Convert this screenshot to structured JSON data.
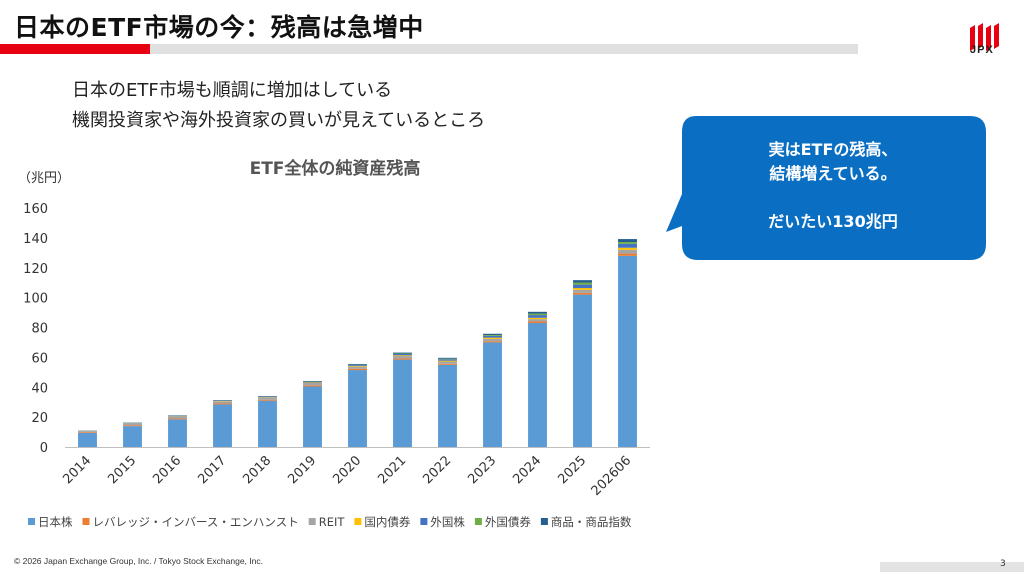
{
  "slide": {
    "title": "日本のETF市場の今：残高は急増中",
    "lead_lines": [
      "日本のETF市場も順調に増加はしている",
      "機関投資家や海外投資家の買いが見えているところ"
    ],
    "callout_lines": [
      "実はETFの残高、",
      "結構増えている。",
      "",
      "だいたい130兆円"
    ],
    "logo_text": "JPX",
    "footer": "© 2026 Japan Exchange Group, Inc. / Tokyo Stock Exchange, Inc.",
    "page_number": "3",
    "colors": {
      "accent": "#e60012",
      "callout": "#0a6fc2"
    }
  },
  "chart_data": {
    "type": "bar",
    "stacked": true,
    "title": "ETF全体の純資産残高",
    "unit_label": "（兆円）",
    "ylim": [
      0,
      160
    ],
    "yticks": [
      0,
      20,
      40,
      60,
      80,
      100,
      120,
      140,
      160
    ],
    "categories": [
      "2014",
      "2015",
      "2016",
      "2017",
      "2018",
      "2019",
      "2020",
      "2021",
      "2022",
      "2023",
      "2024",
      "2025",
      "202606"
    ],
    "legend_position": "bottom",
    "series": [
      {
        "name": "日本株",
        "color": "#5b9bd5",
        "values": [
          9.5,
          14,
          18.5,
          28.5,
          31,
          40.5,
          51.5,
          58.5,
          55,
          70,
          83,
          102,
          128
        ]
      },
      {
        "name": "レバレッジ・インバース・エンハンスト",
        "color": "#ed7d31",
        "values": [
          0.5,
          0.6,
          0.6,
          0.6,
          0.6,
          0.8,
          0.8,
          0.8,
          0.7,
          0.8,
          1,
          1.2,
          1.5
        ]
      },
      {
        "name": "REIT",
        "color": "#a5a5a5",
        "values": [
          0.5,
          1,
          1.3,
          1.5,
          1.6,
          1.6,
          1.5,
          1.6,
          1.5,
          1.6,
          1.6,
          2,
          2.5
        ]
      },
      {
        "name": "国内債券",
        "color": "#ffc000",
        "values": [
          0.1,
          0.1,
          0.2,
          0.2,
          0.2,
          0.3,
          0.4,
          0.5,
          0.6,
          0.8,
          0.9,
          1.2,
          1.4
        ]
      },
      {
        "name": "外国株",
        "color": "#4472c4",
        "values": [
          0.1,
          0.2,
          0.2,
          0.2,
          0.3,
          0.4,
          0.6,
          0.9,
          0.9,
          1.2,
          1.8,
          2.3,
          2.6
        ]
      },
      {
        "name": "外国債券",
        "color": "#70ad47",
        "values": [
          0.1,
          0.1,
          0.1,
          0.1,
          0.1,
          0.2,
          0.3,
          0.3,
          0.4,
          0.6,
          1,
          1.4,
          1.2
        ]
      },
      {
        "name": "商品・商品指数",
        "color": "#255e91",
        "values": [
          0.2,
          0.3,
          0.3,
          0.3,
          0.3,
          0.4,
          0.5,
          0.6,
          0.6,
          0.8,
          1.2,
          1.6,
          2
        ]
      }
    ]
  }
}
